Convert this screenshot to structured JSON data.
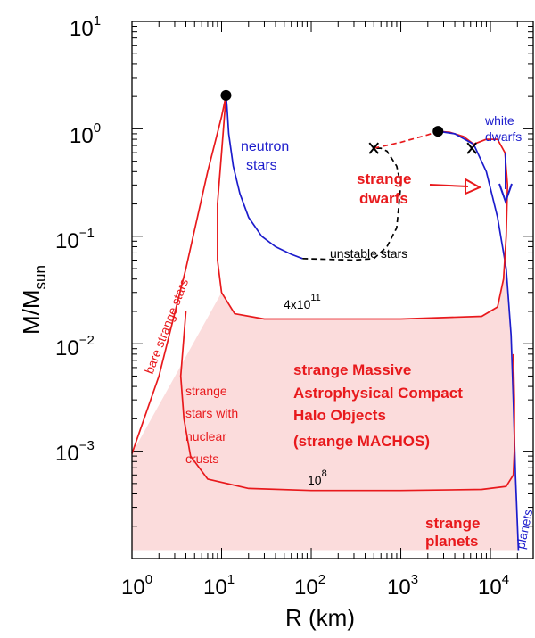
{
  "chart_data": {
    "type": "line",
    "xlabel": "R (km)",
    "ylabel": {
      "main": "M/M",
      "sub": "sun"
    },
    "xscale": "log",
    "yscale": "log",
    "xlim": [
      1,
      30000
    ],
    "ylim": [
      0.0001,
      10
    ],
    "x_ticks": [
      {
        "value": 1,
        "base": "10",
        "exp": "0"
      },
      {
        "value": 10,
        "base": "10",
        "exp": "1"
      },
      {
        "value": 100,
        "base": "10",
        "exp": "2"
      },
      {
        "value": 1000,
        "base": "10",
        "exp": "3"
      },
      {
        "value": 10000,
        "base": "10",
        "exp": "4"
      }
    ],
    "y_ticks": [
      {
        "value": 10,
        "base": "10",
        "exp": "1"
      },
      {
        "value": 1,
        "base": "10",
        "exp": "0"
      },
      {
        "value": 0.1,
        "base": "10",
        "exp": "−1"
      },
      {
        "value": 0.01,
        "base": "10",
        "exp": "−2"
      },
      {
        "value": 0.001,
        "base": "10",
        "exp": "−3"
      }
    ],
    "colors": {
      "red": "#e8191c",
      "blue": "#1c1ccc",
      "black": "#000000",
      "fill": "#fbdcdc"
    },
    "series": [
      {
        "key": "neutron",
        "color": "blue",
        "dashed": false,
        "x": [
          11.2,
          11.5,
          12.0,
          13.5,
          16,
          20,
          28,
          40,
          60,
          80
        ],
        "y": [
          2.05,
          1.6,
          0.9,
          0.45,
          0.25,
          0.15,
          0.1,
          0.08,
          0.068,
          0.062
        ]
      },
      {
        "key": "unstable",
        "color": "black",
        "dashed": true,
        "x": [
          80,
          150,
          300,
          500,
          700,
          900,
          1000,
          900,
          700,
          600,
          500
        ],
        "y": [
          0.062,
          0.061,
          0.06,
          0.062,
          0.08,
          0.12,
          0.3,
          0.45,
          0.62,
          0.66,
          0.66
        ]
      },
      {
        "key": "strange-dwarf",
        "color": "red",
        "dashed": true,
        "x": [
          500,
          1000,
          2000,
          2600
        ],
        "y": [
          0.66,
          0.75,
          0.88,
          0.95
        ]
      },
      {
        "key": "strange-dwarf-red",
        "color": "red",
        "dashed": false,
        "x": [
          2600,
          3500,
          5000,
          6500
        ],
        "y": [
          0.95,
          0.93,
          0.85,
          0.72
        ]
      },
      {
        "key": "white-dwarf",
        "color": "blue",
        "dashed": false,
        "x": [
          2600,
          4000,
          6500,
          9000,
          12000,
          15000,
          17000,
          18000,
          19000,
          20500
        ],
        "y": [
          0.95,
          0.9,
          0.72,
          0.4,
          0.15,
          0.05,
          0.012,
          0.003,
          0.0006,
          0.00012
        ]
      },
      {
        "key": "bare",
        "color": "red",
        "dashed": false,
        "x": [
          1,
          2,
          4,
          7,
          10,
          11.2
        ],
        "y": [
          0.00095,
          0.005,
          0.05,
          0.4,
          1.3,
          2.05
        ]
      },
      {
        "key": "contour-4e11",
        "color": "red",
        "dashed": false,
        "x": [
          11.2,
          10,
          9,
          9,
          10,
          14,
          30,
          100,
          1000,
          8000,
          12000,
          14000,
          15000,
          15500,
          14500,
          12000,
          9000,
          6500
        ],
        "y": [
          2.05,
          0.6,
          0.2,
          0.06,
          0.03,
          0.019,
          0.017,
          0.017,
          0.017,
          0.018,
          0.022,
          0.04,
          0.1,
          0.3,
          0.6,
          0.8,
          0.8,
          0.72
        ]
      },
      {
        "key": "contour-1e8",
        "color": "red",
        "dashed": false,
        "x": [
          4,
          3.5,
          3.8,
          4.5,
          7,
          20,
          100,
          1000,
          8000,
          15000,
          18000,
          18500,
          18500,
          18000
        ],
        "y": [
          0.02,
          0.005,
          0.002,
          0.0009,
          0.00055,
          0.00045,
          0.00043,
          0.00043,
          0.00044,
          0.00047,
          0.0006,
          0.001,
          0.003,
          0.008
        ]
      }
    ],
    "points": [
      {
        "type": "dot",
        "x": 11.2,
        "y": 2.05
      },
      {
        "type": "dot",
        "x": 2600,
        "y": 0.95
      },
      {
        "type": "cross",
        "x": 500,
        "y": 0.66
      },
      {
        "type": "cross",
        "x": 6200,
        "y": 0.66
      }
    ]
  },
  "labels": {
    "neutron_1": "neutron",
    "neutron_2": "stars",
    "white_1": "white",
    "white_2": "dwarfs",
    "strange_dwarfs_1": "strange",
    "strange_dwarfs_2": "dwarfs",
    "unstable": "unstable stars",
    "contour_hi_base": "4x10",
    "contour_hi_exp": "11",
    "contour_lo_base": "10",
    "contour_lo_exp": "8",
    "bare": "bare strange stars",
    "crust_1": "strange",
    "crust_2": "stars with",
    "crust_3": "nuclear",
    "crust_4": "crusts",
    "machos_1": "strange Massive",
    "machos_2": "Astrophysical Compact",
    "machos_3": "Halo Objects",
    "machos_4": "(strange MACHOS)",
    "planets_red_1": "strange",
    "planets_red_2": "planets",
    "planets_blue": "planets"
  }
}
